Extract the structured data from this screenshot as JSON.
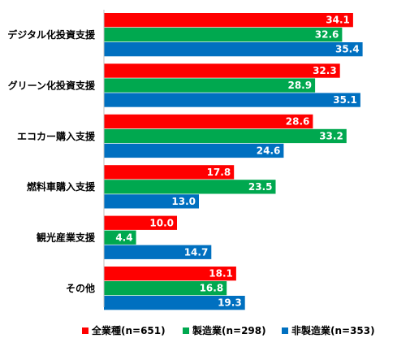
{
  "chart_data": {
    "type": "bar",
    "orientation": "horizontal",
    "categories": [
      "デジタル化投資支援",
      "グリーン化投資支援",
      "エコカー購入支援",
      "燃料車購入支援",
      "観光産業支援",
      "その他"
    ],
    "series": [
      {
        "name": "全業種(n=651)",
        "color": "#ff0000",
        "values": [
          34.1,
          32.3,
          28.6,
          17.8,
          10.0,
          18.1
        ]
      },
      {
        "name": "製造業(n=298)",
        "color": "#00a84f",
        "values": [
          32.6,
          28.9,
          33.2,
          23.5,
          4.4,
          16.8
        ]
      },
      {
        "name": "非製造業(n=353)",
        "color": "#0070c0",
        "values": [
          35.4,
          35.1,
          24.6,
          13.0,
          14.7,
          19.3
        ]
      }
    ],
    "value_labels": [
      "34.1",
      "32.6",
      "35.4",
      "32.3",
      "28.9",
      "35.1",
      "28.6",
      "33.2",
      "24.6",
      "17.8",
      "23.5",
      "13.0",
      "10.0",
      "4.4",
      "14.7",
      "18.1",
      "16.8",
      "19.3"
    ],
    "xlim": [
      0,
      40
    ],
    "grid": false,
    "legend": "bottom"
  }
}
